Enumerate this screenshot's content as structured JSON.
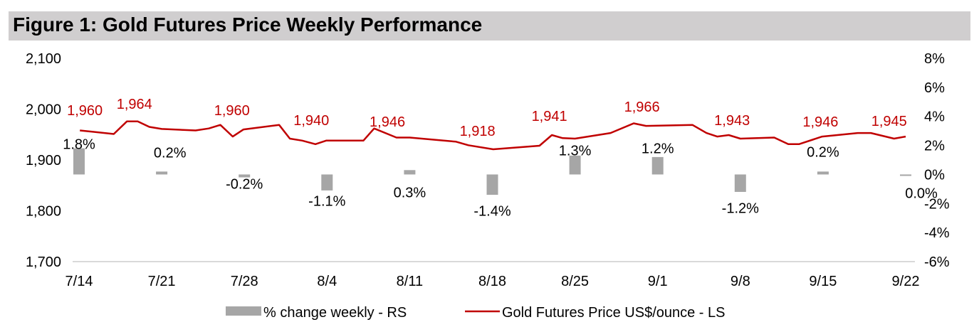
{
  "chart_data": {
    "type": "bar+line",
    "title": "Figure 1: Gold Futures Price Weekly Performance",
    "categories": [
      "7/14",
      "7/21",
      "7/28",
      "8/4",
      "8/11",
      "8/18",
      "8/25",
      "9/1",
      "9/8",
      "9/15",
      "9/22"
    ],
    "left_axis": {
      "label": "US$/ounce",
      "range": [
        1700,
        2100
      ],
      "ticks": [
        "2,100",
        "2,000",
        "1,900",
        "1,800",
        "1,700"
      ],
      "tick_values": [
        2100,
        2000,
        1900,
        1800,
        1700
      ]
    },
    "right_axis": {
      "label": "%",
      "range": [
        -6,
        8
      ],
      "ticks": [
        "8%",
        "6%",
        "4%",
        "2%",
        "0%",
        "-2%",
        "-4%",
        "-6%"
      ],
      "tick_values": [
        8,
        6,
        4,
        2,
        0,
        -2,
        -4,
        -6
      ]
    },
    "series": [
      {
        "name": "% change weekly - RS",
        "type": "bar",
        "axis": "right",
        "color": "#a6a6a6",
        "values": [
          1.8,
          0.2,
          -0.2,
          -1.1,
          0.3,
          -1.4,
          1.3,
          1.2,
          -1.2,
          0.2,
          0.0
        ],
        "labels": [
          "1.8%",
          "0.2%",
          "-0.2%",
          "-1.1%",
          "0.3%",
          "-1.4%",
          "1.3%",
          "1.2%",
          "-1.2%",
          "0.2%",
          "0.0%"
        ]
      },
      {
        "name": "Gold Futures Price US$/ounce - LS",
        "type": "line",
        "axis": "left",
        "color": "#c00000",
        "week_labels": [
          "1,960",
          "1,964",
          "1,960",
          "1,940",
          "1,946",
          "1,918",
          "1,941",
          "1,966",
          "1,943",
          "1,946",
          "1,945"
        ],
        "points": [
          [
            0.01,
            1958
          ],
          [
            0.42,
            1951
          ],
          [
            0.58,
            1976
          ],
          [
            0.71,
            1976
          ],
          [
            0.85,
            1965
          ],
          [
            1.0,
            1961
          ],
          [
            1.41,
            1958
          ],
          [
            1.57,
            1962
          ],
          [
            1.71,
            1969
          ],
          [
            1.86,
            1946
          ],
          [
            1.99,
            1960
          ],
          [
            2.42,
            1969
          ],
          [
            2.55,
            1942
          ],
          [
            2.7,
            1938
          ],
          [
            2.86,
            1931
          ],
          [
            2.99,
            1938
          ],
          [
            3.44,
            1938
          ],
          [
            3.57,
            1962
          ],
          [
            3.84,
            1944
          ],
          [
            4.0,
            1944
          ],
          [
            4.56,
            1936
          ],
          [
            4.71,
            1929
          ],
          [
            5.01,
            1921
          ],
          [
            5.57,
            1928
          ],
          [
            5.72,
            1949
          ],
          [
            5.85,
            1943
          ],
          [
            6.0,
            1942
          ],
          [
            6.43,
            1953
          ],
          [
            6.71,
            1972
          ],
          [
            6.86,
            1967
          ],
          [
            7.42,
            1969
          ],
          [
            7.59,
            1953
          ],
          [
            7.72,
            1946
          ],
          [
            7.86,
            1949
          ],
          [
            8.0,
            1942
          ],
          [
            8.41,
            1944
          ],
          [
            8.58,
            1931
          ],
          [
            8.71,
            1931
          ],
          [
            8.99,
            1946
          ],
          [
            9.42,
            1953
          ],
          [
            9.58,
            1953
          ],
          [
            9.86,
            1942
          ],
          [
            10.0,
            1946
          ]
        ]
      }
    ],
    "legend": {
      "position": "bottom-center",
      "items": [
        "% change weekly - RS",
        "Gold Futures Price US$/ounce - LS"
      ]
    },
    "grid": false
  }
}
